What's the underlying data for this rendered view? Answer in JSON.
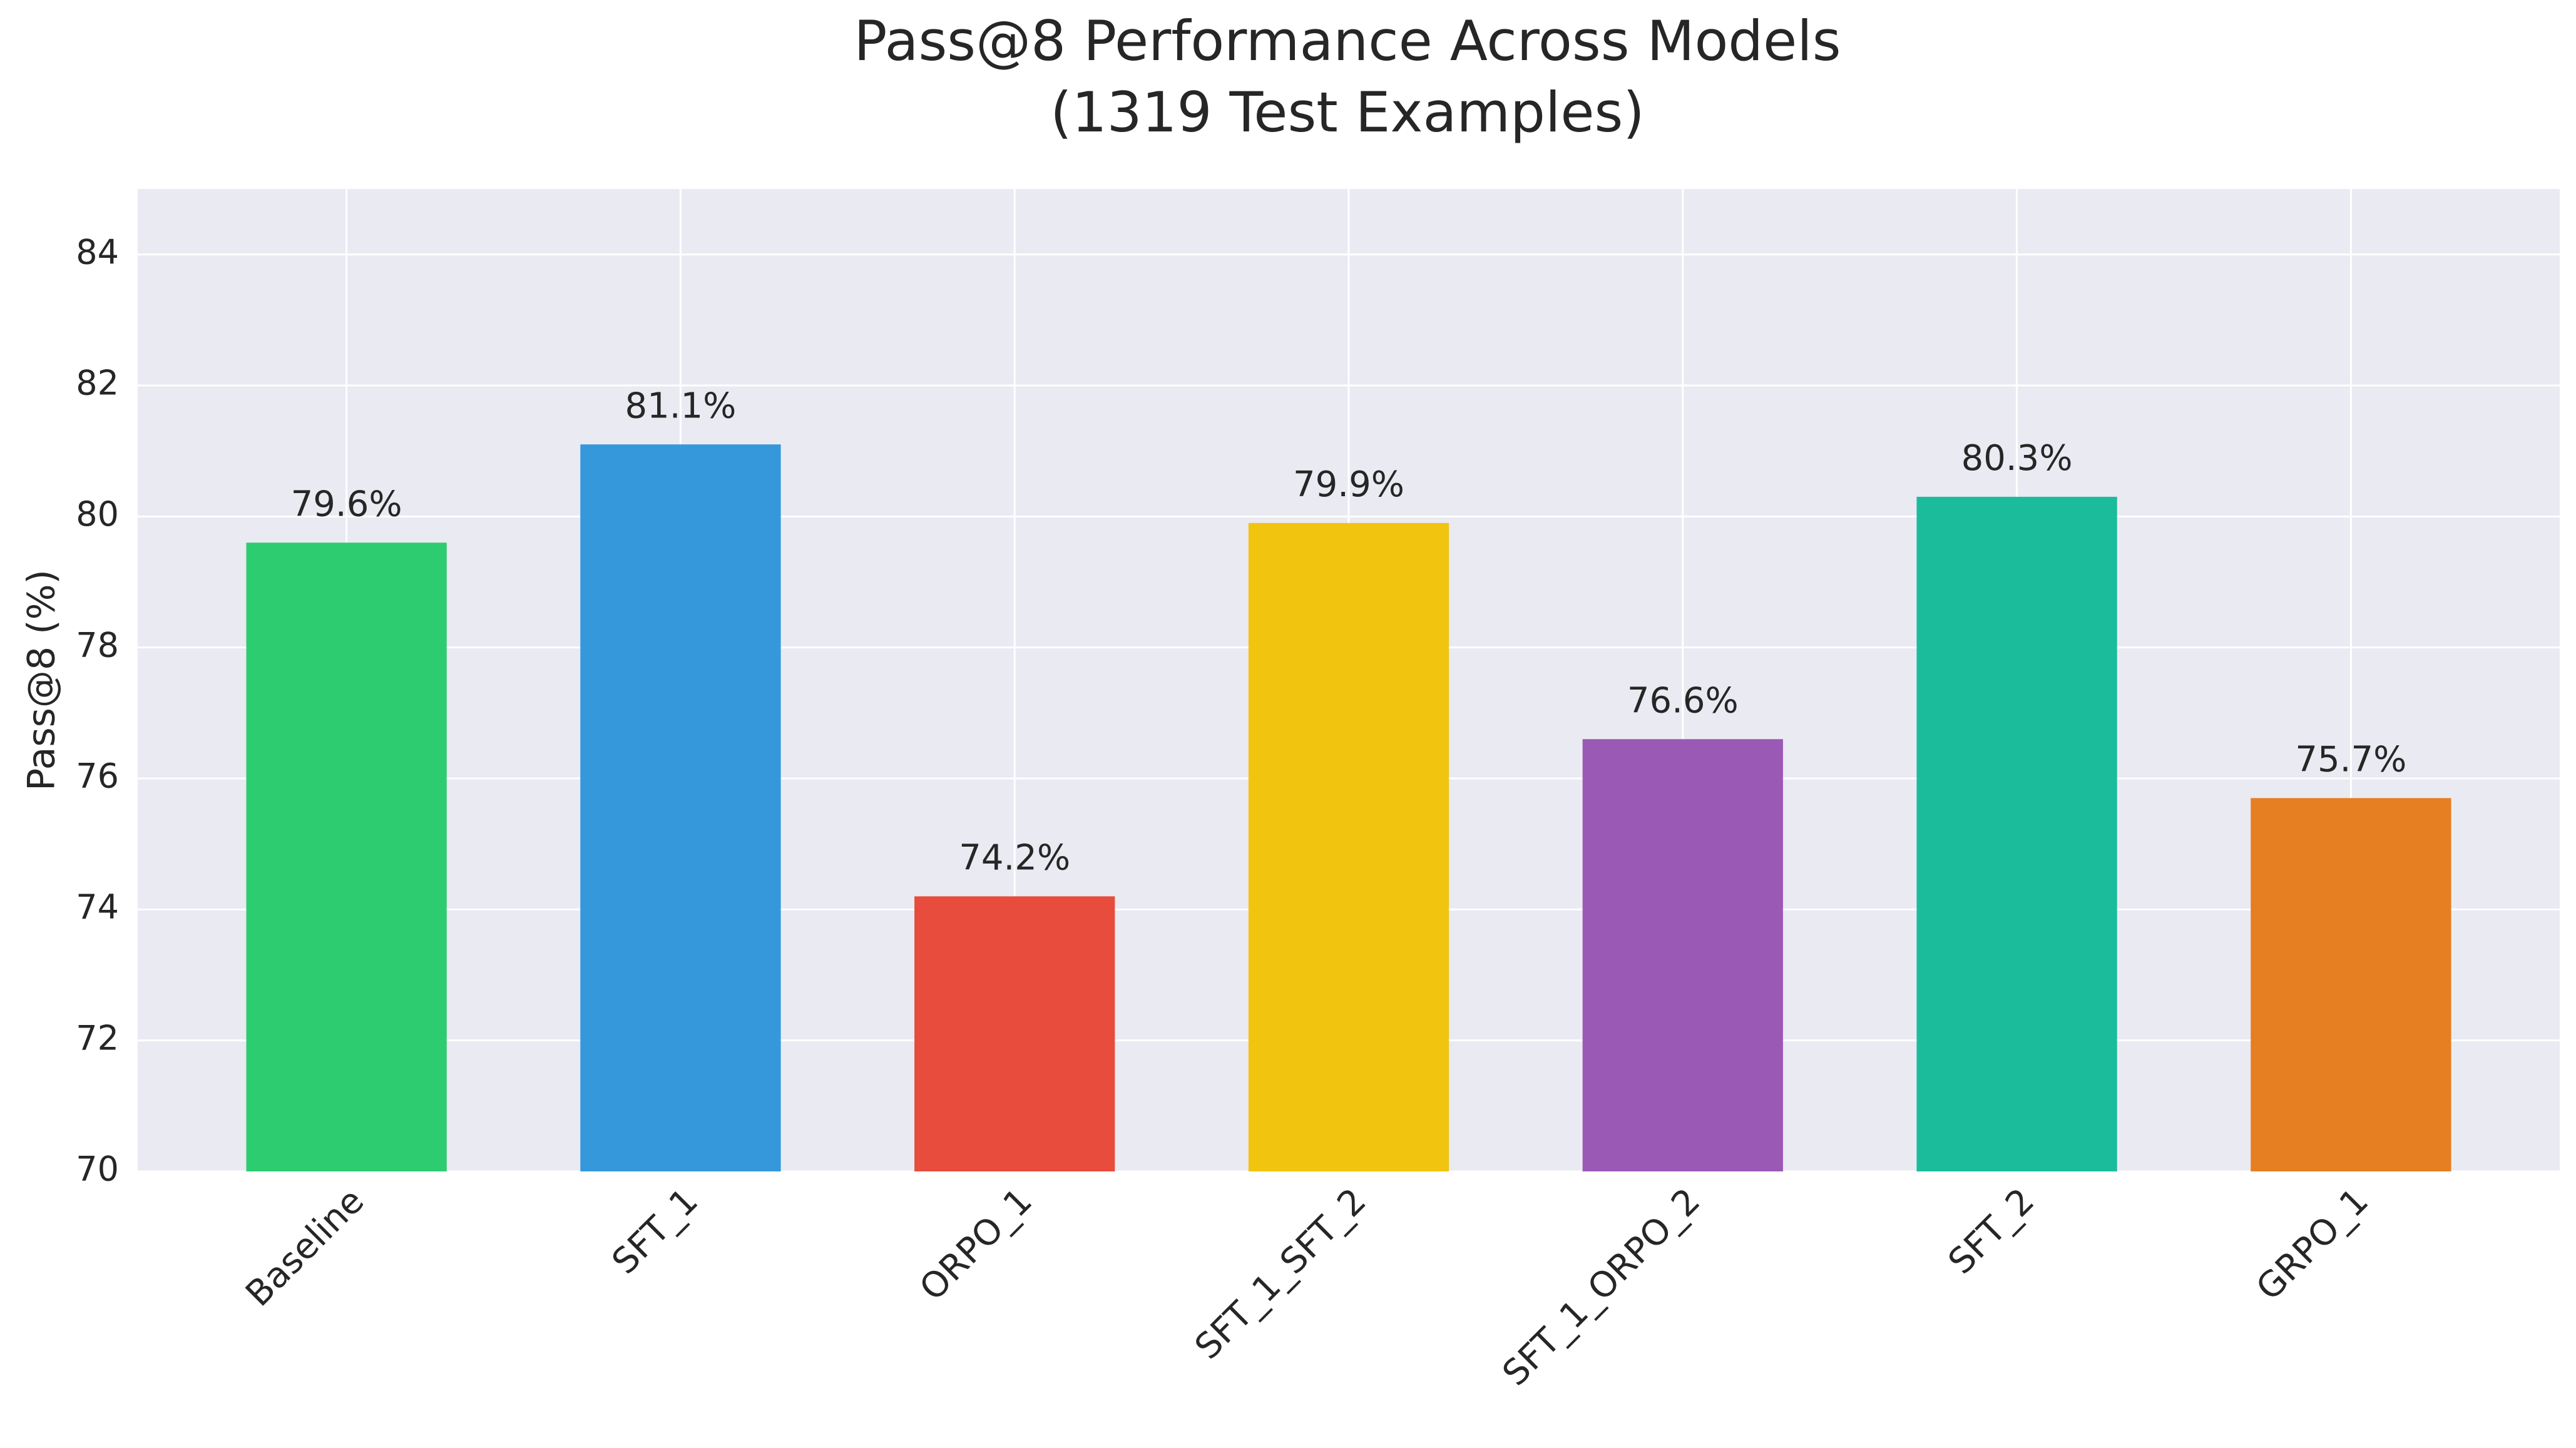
{
  "chart_data": {
    "type": "bar",
    "title": [
      "Pass@8 Performance Across Models",
      "(1319 Test Examples)"
    ],
    "y_label": "Pass@8 (%)",
    "categories": [
      "Baseline",
      "SFT_1",
      "ORPO_1",
      "SFT_1_SFT_2",
      "SFT_1_ORPO_2",
      "SFT_2",
      "GRPO_1"
    ],
    "values": [
      79.6,
      81.1,
      74.2,
      79.9,
      76.6,
      80.3,
      75.7
    ],
    "value_labels": [
      "79.6%",
      "81.1%",
      "74.2%",
      "79.9%",
      "76.6%",
      "80.3%",
      "75.7%"
    ],
    "colors": [
      "#2ecc71",
      "#3498db",
      "#e74c3c",
      "#f1c40f",
      "#9b59b6",
      "#1abc9c",
      "#e67e22"
    ],
    "ylim": [
      70,
      85
    ],
    "yticks": [
      70,
      72,
      74,
      76,
      78,
      80,
      82,
      84
    ],
    "grid": true
  }
}
